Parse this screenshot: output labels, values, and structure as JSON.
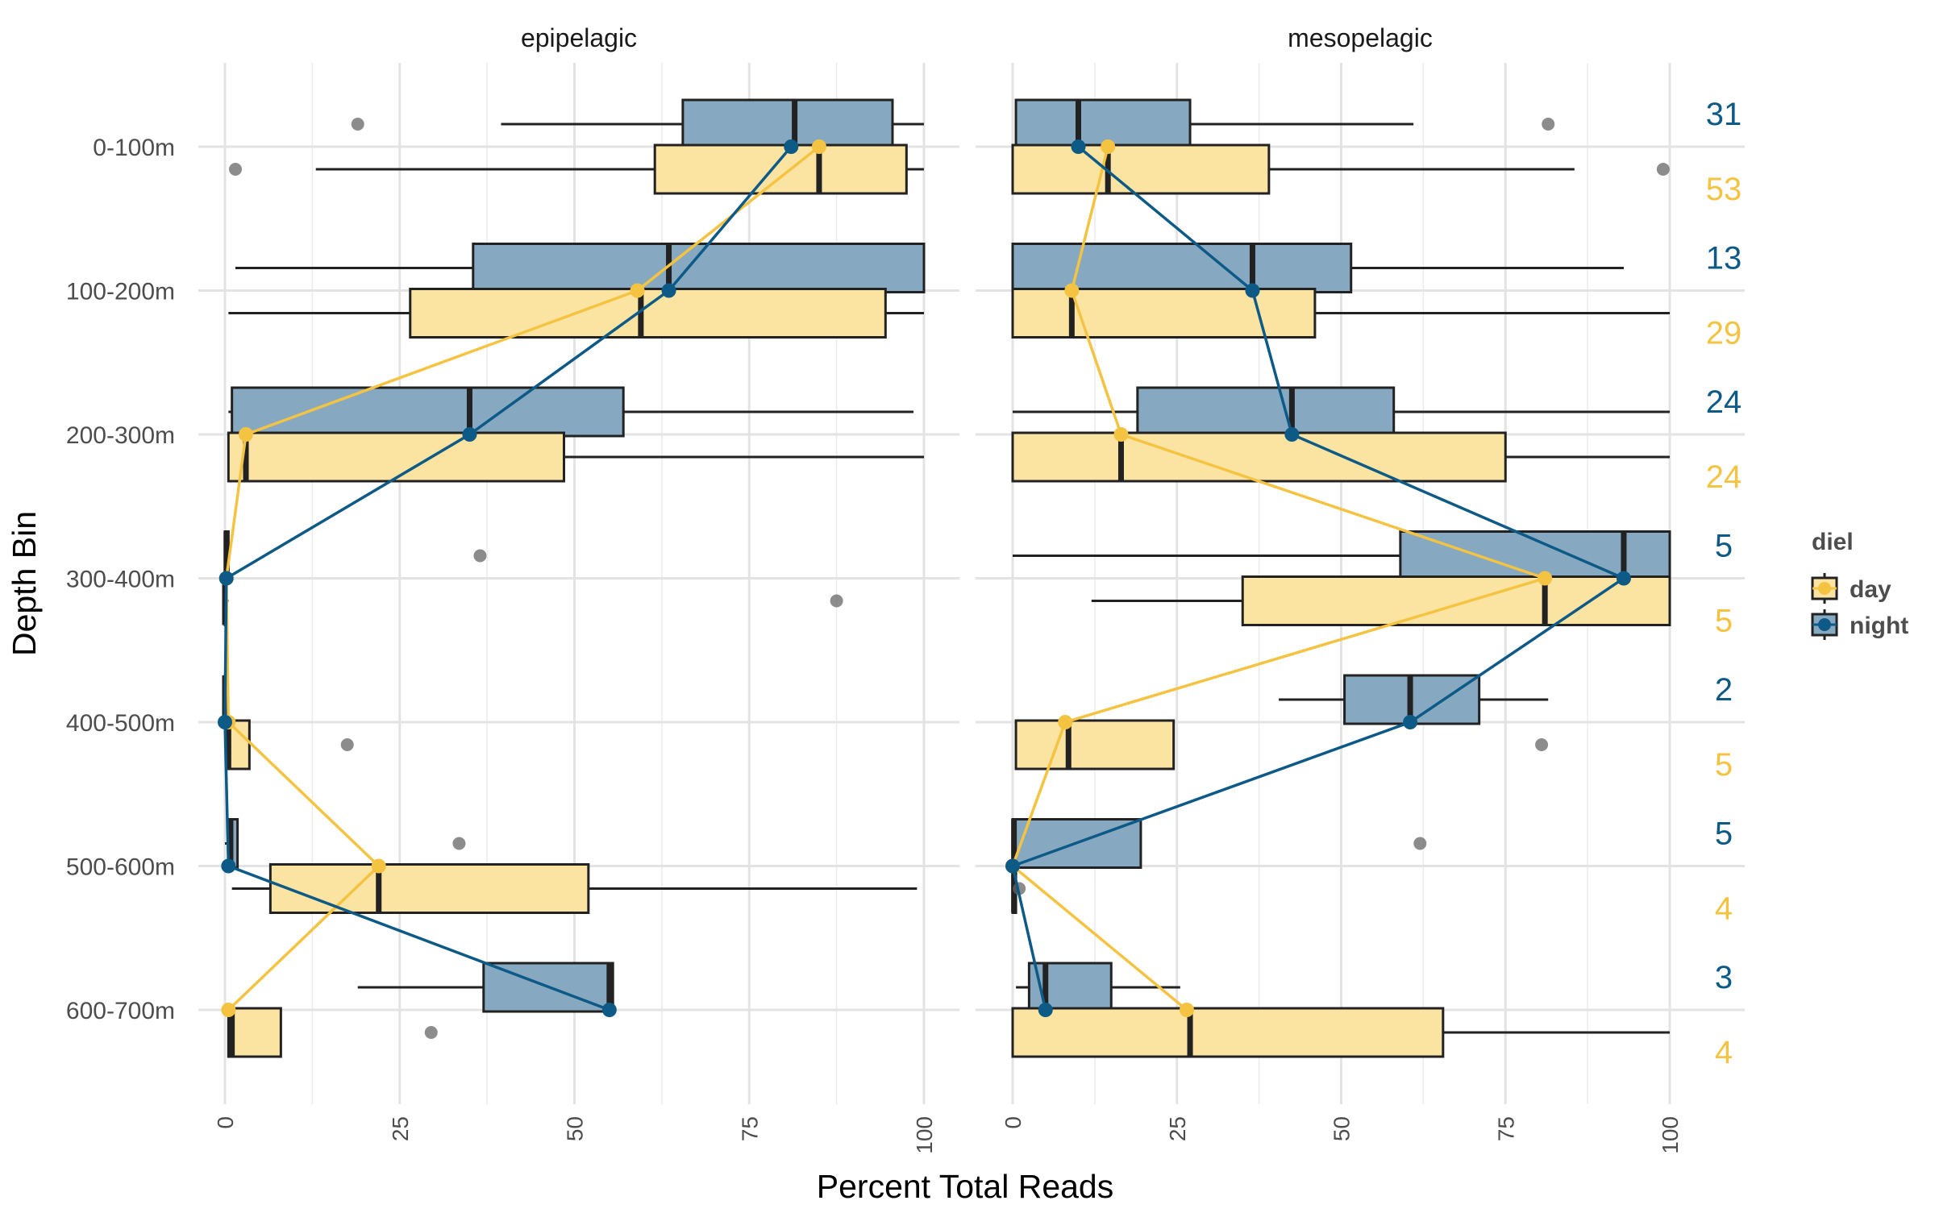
{
  "chart_data": {
    "type": "boxplot",
    "x_axis": {
      "label": "Percent Total Reads",
      "range": [
        0,
        100
      ],
      "ticks": [
        0,
        25,
        50,
        75,
        100
      ],
      "tick_labels": [
        "0",
        "25",
        "50",
        "75",
        "100"
      ],
      "tick_label_rotation": "vertical"
    },
    "y_axis": {
      "label": "Depth Bin",
      "categories": [
        "0-100m",
        "100-200m",
        "200-300m",
        "300-400m",
        "400-500m",
        "500-600m",
        "600-700m"
      ]
    },
    "legend": {
      "title": "diel",
      "placement": "right",
      "entries": [
        {
          "name": "day",
          "color": "#F5C342",
          "fill": "#FBE3A1"
        },
        {
          "name": "night",
          "color": "#0E5A87",
          "fill": "#86A9C1"
        }
      ]
    },
    "grid": true,
    "panels": [
      {
        "title": "epipelagic",
        "boxes": [
          {
            "depth": "0-100m",
            "diel": "night",
            "whisker_low": 39.5,
            "q1": 65.5,
            "median": 81.5,
            "q3": 95.5,
            "whisker_high": 100,
            "outliers": [
              19
            ]
          },
          {
            "depth": "0-100m",
            "diel": "day",
            "whisker_low": 13,
            "q1": 61.5,
            "median": 85,
            "q3": 97.5,
            "whisker_high": 100,
            "outliers": [
              1.5
            ]
          },
          {
            "depth": "100-200m",
            "diel": "night",
            "whisker_low": 1.5,
            "q1": 35.5,
            "median": 63.5,
            "q3": 100,
            "whisker_high": 100,
            "outliers": []
          },
          {
            "depth": "100-200m",
            "diel": "day",
            "whisker_low": 0.5,
            "q1": 26.5,
            "median": 59.5,
            "q3": 94.5,
            "whisker_high": 100,
            "outliers": []
          },
          {
            "depth": "200-300m",
            "diel": "night",
            "whisker_low": 0.5,
            "q1": 1,
            "median": 35,
            "q3": 57,
            "whisker_high": 98.5,
            "outliers": []
          },
          {
            "depth": "200-300m",
            "diel": "day",
            "whisker_low": 0.5,
            "q1": 0.5,
            "median": 3,
            "q3": 48.5,
            "whisker_high": 100,
            "outliers": []
          },
          {
            "depth": "300-400m",
            "diel": "night",
            "whisker_low": 0,
            "q1": 0,
            "median": 0.2,
            "q3": 0.5,
            "whisker_high": 0.8,
            "outliers": [
              36.5
            ]
          },
          {
            "depth": "300-400m",
            "diel": "day",
            "whisker_low": 0,
            "q1": 0,
            "median": 0,
            "q3": 0,
            "whisker_high": 0.5,
            "outliers": [
              87.5
            ]
          },
          {
            "depth": "400-500m",
            "diel": "night",
            "whisker_low": 0,
            "q1": 0,
            "median": 0,
            "q3": 0,
            "whisker_high": 0.2,
            "outliers": []
          },
          {
            "depth": "400-500m",
            "diel": "day",
            "whisker_low": 0,
            "q1": 0.3,
            "median": 0.5,
            "q3": 3.5,
            "whisker_high": 3.5,
            "outliers": [
              17.5
            ]
          },
          {
            "depth": "500-600m",
            "diel": "night",
            "whisker_low": 0,
            "q1": 0.5,
            "median": 0.8,
            "q3": 1.8,
            "whisker_high": 1.8,
            "outliers": [
              33.5
            ]
          },
          {
            "depth": "500-600m",
            "diel": "day",
            "whisker_low": 1,
            "q1": 6.5,
            "median": 22,
            "q3": 52,
            "whisker_high": 99,
            "outliers": []
          },
          {
            "depth": "600-700m",
            "diel": "night",
            "whisker_low": 19,
            "q1": 37,
            "median": 55,
            "q3": 55.5,
            "whisker_high": 55.5,
            "outliers": []
          },
          {
            "depth": "600-700m",
            "diel": "day",
            "whisker_low": 0.5,
            "q1": 0.5,
            "median": 1,
            "q3": 8,
            "whisker_high": 8,
            "outliers": [
              29.5
            ]
          }
        ],
        "mean_lines": [
          {
            "name": "day",
            "values": [
              85,
              59,
              3,
              0.2,
              0.5,
              22,
              0.5
            ]
          },
          {
            "name": "night",
            "values": [
              81,
              63.5,
              35,
              0.2,
              0,
              0.5,
              55
            ]
          }
        ]
      },
      {
        "title": "mesopelagic",
        "boxes": [
          {
            "depth": "0-100m",
            "diel": "night",
            "whisker_low": 0.5,
            "q1": 0.5,
            "median": 10,
            "q3": 27,
            "whisker_high": 61,
            "outliers": [
              81.5
            ]
          },
          {
            "depth": "0-100m",
            "diel": "day",
            "whisker_low": 0,
            "q1": 0,
            "median": 14.5,
            "q3": 39,
            "whisker_high": 85.5,
            "outliers": [
              99
            ]
          },
          {
            "depth": "100-200m",
            "diel": "night",
            "whisker_low": 0,
            "q1": 0,
            "median": 36.5,
            "q3": 51.5,
            "whisker_high": 93,
            "outliers": []
          },
          {
            "depth": "100-200m",
            "diel": "day",
            "whisker_low": 0,
            "q1": 0,
            "median": 9,
            "q3": 46,
            "whisker_high": 100,
            "outliers": []
          },
          {
            "depth": "200-300m",
            "diel": "night",
            "whisker_low": 0,
            "q1": 19,
            "median": 42.5,
            "q3": 58,
            "whisker_high": 100,
            "outliers": []
          },
          {
            "depth": "200-300m",
            "diel": "day",
            "whisker_low": 0,
            "q1": 0,
            "median": 16.5,
            "q3": 75,
            "whisker_high": 100,
            "outliers": []
          },
          {
            "depth": "300-400m",
            "diel": "night",
            "whisker_low": 0,
            "q1": 59,
            "median": 93,
            "q3": 100,
            "whisker_high": 100,
            "outliers": []
          },
          {
            "depth": "300-400m",
            "diel": "day",
            "whisker_low": 12,
            "q1": 35,
            "median": 81,
            "q3": 100,
            "whisker_high": 100,
            "outliers": []
          },
          {
            "depth": "400-500m",
            "diel": "night",
            "whisker_low": 40.5,
            "q1": 50.5,
            "median": 60.5,
            "q3": 71,
            "whisker_high": 81.5,
            "outliers": []
          },
          {
            "depth": "400-500m",
            "diel": "day",
            "whisker_low": 0.5,
            "q1": 0.5,
            "median": 8.5,
            "q3": 24.5,
            "whisker_high": 24.5,
            "outliers": [
              80.5
            ]
          },
          {
            "depth": "500-600m",
            "diel": "night",
            "whisker_low": 0,
            "q1": 0,
            "median": 0.2,
            "q3": 19.5,
            "whisker_high": 19.5,
            "outliers": [
              62
            ]
          },
          {
            "depth": "500-600m",
            "diel": "day",
            "whisker_low": 0,
            "q1": 0,
            "median": 0.2,
            "q3": 0.5,
            "whisker_high": 0.5,
            "outliers": [
              1
            ]
          },
          {
            "depth": "600-700m",
            "diel": "night",
            "whisker_low": 0.5,
            "q1": 2.5,
            "median": 5,
            "q3": 15,
            "whisker_high": 25.5,
            "outliers": []
          },
          {
            "depth": "600-700m",
            "diel": "day",
            "whisker_low": 0,
            "q1": 0,
            "median": 27,
            "q3": 65.5,
            "whisker_high": 100,
            "outliers": []
          }
        ],
        "mean_lines": [
          {
            "name": "day",
            "values": [
              14.5,
              9,
              16.5,
              81,
              8,
              0,
              26.5
            ]
          },
          {
            "name": "night",
            "values": [
              10,
              36.5,
              42.5,
              93,
              60.5,
              0,
              5
            ]
          }
        ]
      }
    ],
    "annotations": {
      "night": [
        "31",
        "13",
        "24",
        "5",
        "2",
        "5",
        "3"
      ],
      "day": [
        "53",
        "29",
        "24",
        "5",
        "5",
        "4",
        "4"
      ]
    }
  }
}
